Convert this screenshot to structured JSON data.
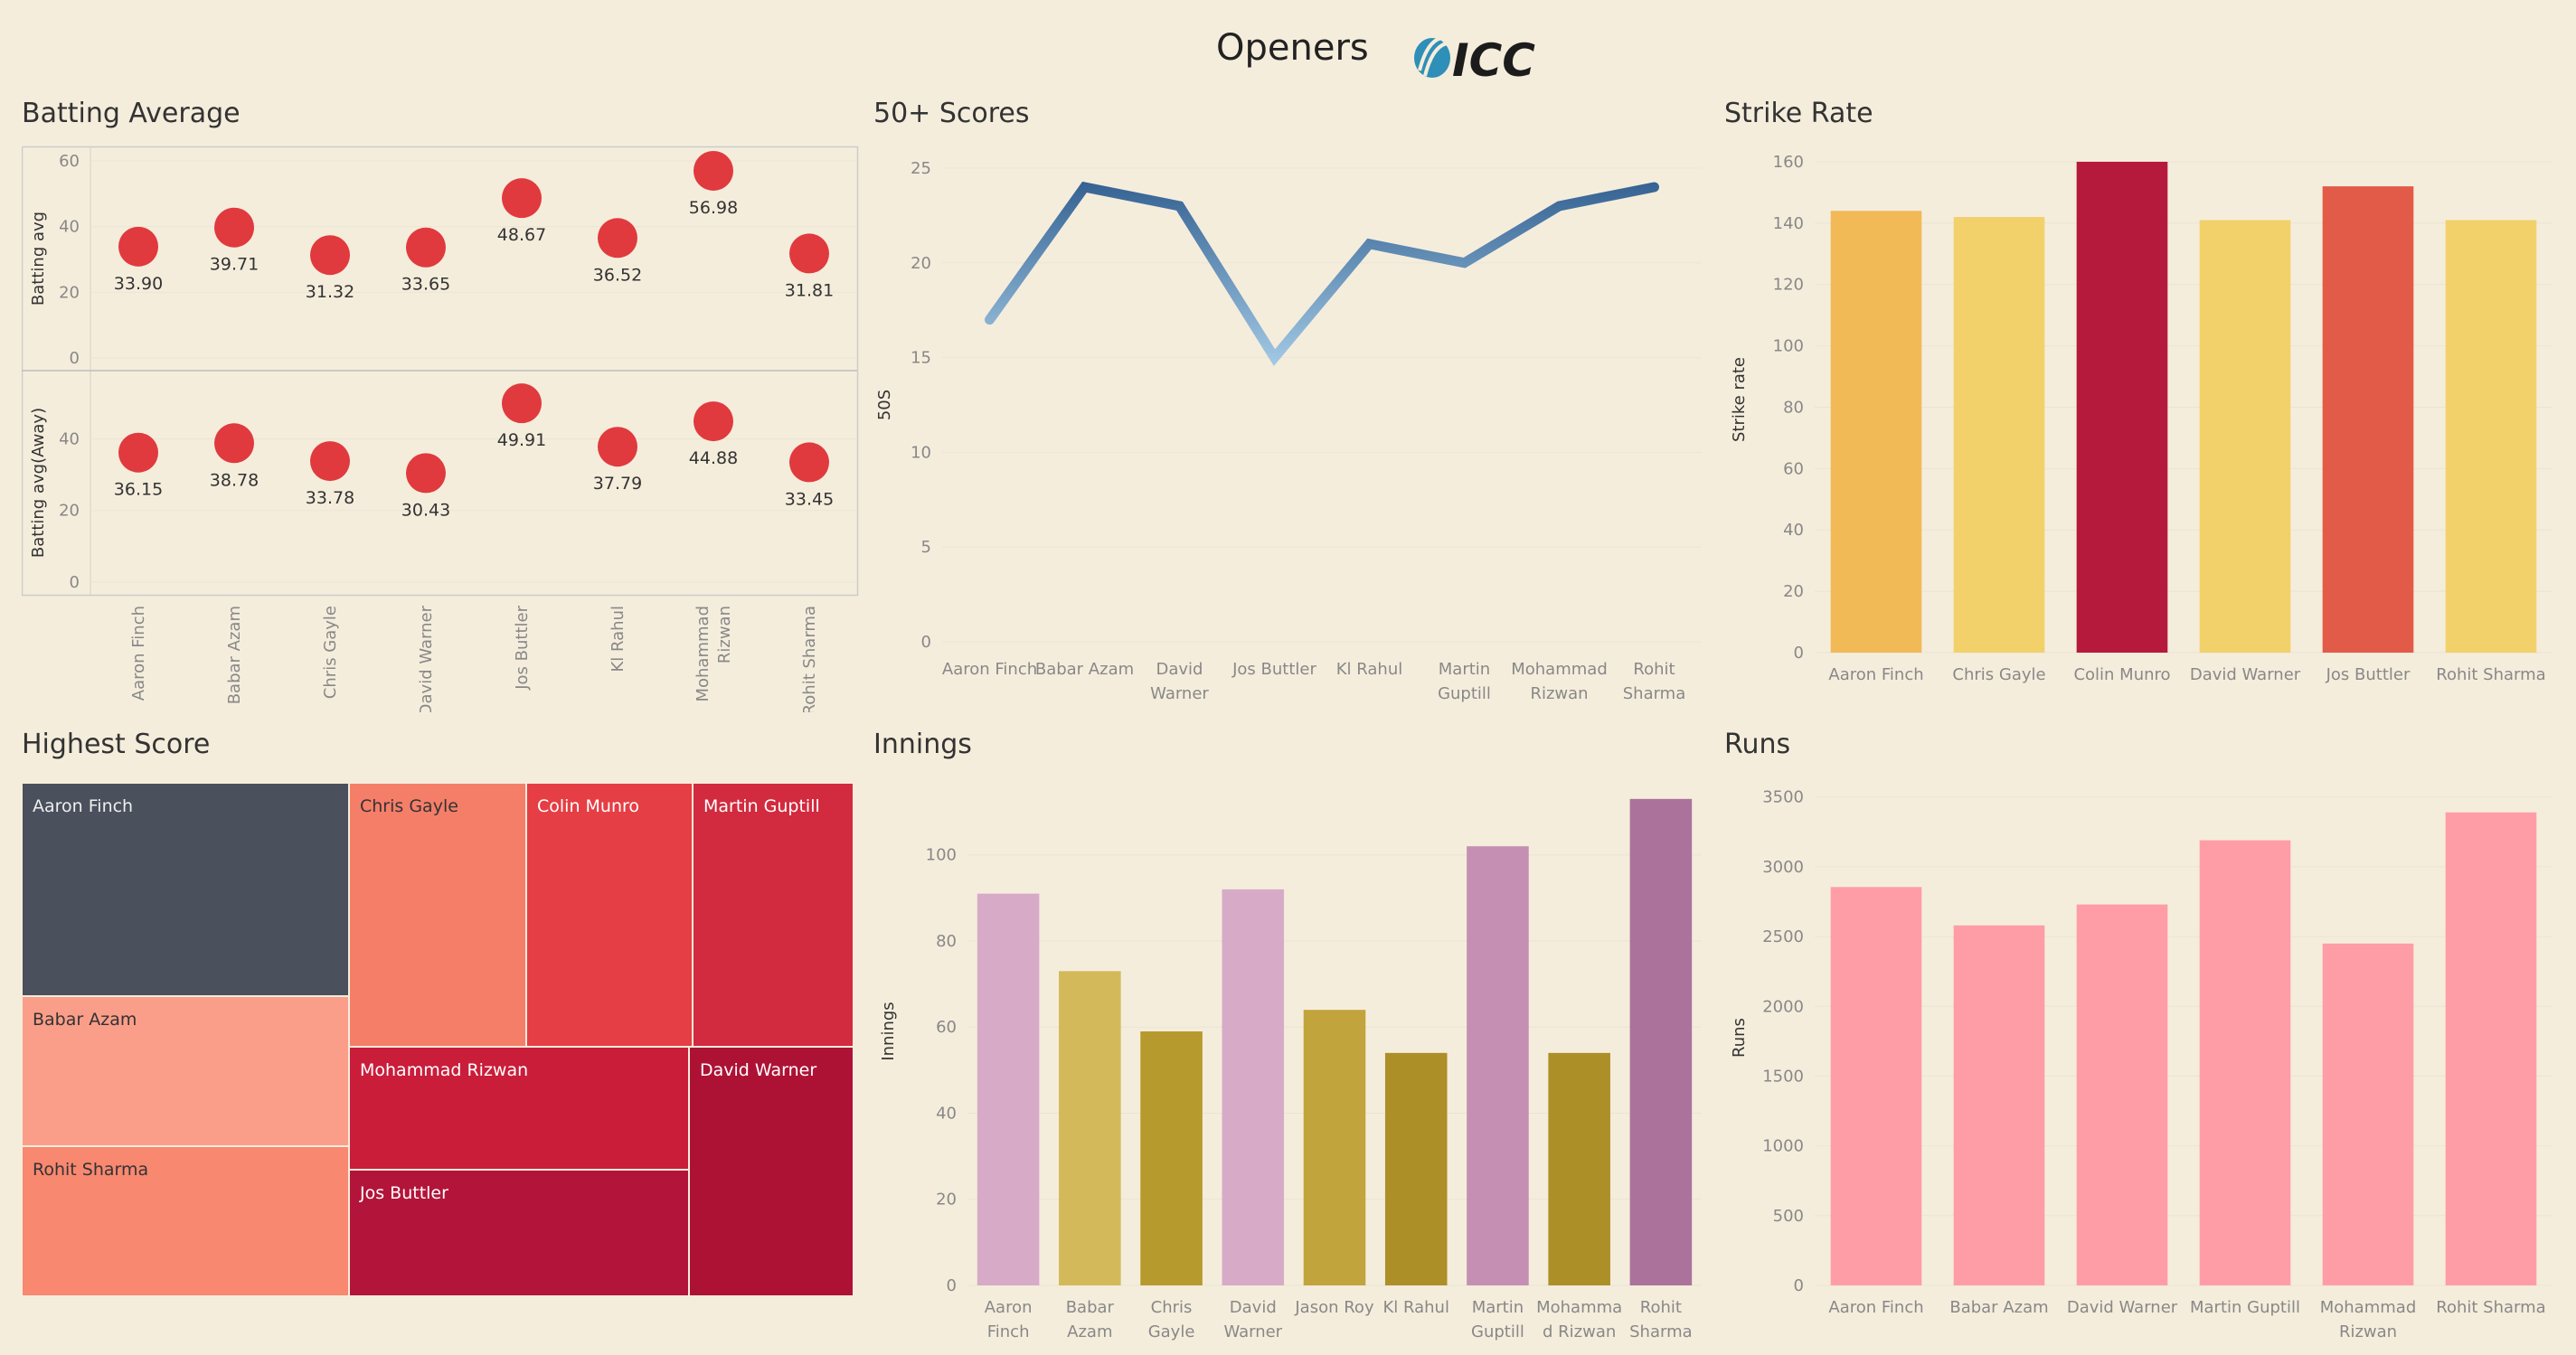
{
  "header": {
    "title": "Openers",
    "logo_text": "ICC",
    "logo_icon": "icc-logo-icon"
  },
  "colors": {
    "background": "#f5eddc",
    "dot": "#e03a3e"
  },
  "chart_data": [
    {
      "id": "batting_average",
      "type": "scatter",
      "title": "Batting Average",
      "categories": [
        "Aaron Finch",
        "Babar Azam",
        "Chris Gayle",
        "David Warner",
        "Jos Buttler",
        "Kl Rahul",
        "Mohammad Rizwan",
        "Rohit Sharma"
      ],
      "series": [
        {
          "name": "Batting avg",
          "values": [
            33.9,
            39.71,
            31.32,
            33.65,
            48.67,
            36.52,
            56.98,
            31.81
          ],
          "labels": [
            "33.90",
            "39.71",
            "31.32",
            "33.65",
            "48.67",
            "36.52",
            "56.98",
            "31.81"
          ],
          "ylim": [
            0,
            60
          ],
          "ticks": [
            0,
            20,
            40,
            60
          ]
        },
        {
          "name": "Batting avg(Away)",
          "values": [
            36.15,
            38.78,
            33.78,
            30.43,
            49.91,
            37.79,
            44.88,
            33.45
          ],
          "labels": [
            "36.15",
            "38.78",
            "33.78",
            "30.43",
            "49.91",
            "37.79",
            "44.88",
            "33.45"
          ],
          "ylim": [
            0,
            55
          ],
          "ticks": [
            0,
            20,
            40
          ]
        }
      ]
    },
    {
      "id": "fifty_plus",
      "type": "line",
      "title": "50+ Scores",
      "ylabel": "50S",
      "categories": [
        "Aaron Finch",
        "Babar Azam",
        "David Warner",
        "Jos Buttler",
        "Kl Rahul",
        "Martin Guptill",
        "Mohammad Rizwan",
        "Rohit Sharma"
      ],
      "values": [
        17,
        24,
        23,
        15,
        21,
        20,
        23,
        24
      ],
      "ylim": [
        0,
        25
      ],
      "ticks": [
        0,
        5,
        10,
        15,
        20,
        25
      ],
      "colors": {
        "high": "#2c5a8c",
        "low": "#a9d0ea"
      }
    },
    {
      "id": "strike_rate",
      "type": "bar",
      "title": "Strike Rate",
      "ylabel": "Strike rate",
      "categories": [
        "Aaron Finch",
        "Chris Gayle",
        "Colin Munro",
        "David Warner",
        "Jos Buttler",
        "Rohit Sharma"
      ],
      "values": [
        144,
        142,
        160,
        141,
        152,
        141
      ],
      "ylim": [
        0,
        165
      ],
      "ticks": [
        0,
        20,
        40,
        60,
        80,
        100,
        120,
        140,
        160
      ],
      "colors": [
        "#f2b957",
        "#f2d16b",
        "#b5193c",
        "#f2d16b",
        "#e25b48",
        "#f2d16b"
      ]
    },
    {
      "id": "highest_score",
      "type": "treemap",
      "title": "Highest Score",
      "items": [
        {
          "name": "Aaron Finch",
          "color": "#4a505c",
          "text": "#eeeeee"
        },
        {
          "name": "Babar Azam",
          "color": "#fa9e89",
          "text": "#333333"
        },
        {
          "name": "Rohit Sharma",
          "color": "#f88870",
          "text": "#333333"
        },
        {
          "name": "Chris Gayle",
          "color": "#f57e69",
          "text": "#333333"
        },
        {
          "name": "Colin Munro",
          "color": "#e53e44",
          "text": "#ffffff"
        },
        {
          "name": "Martin Guptill",
          "color": "#d22a3e",
          "text": "#ffffff"
        },
        {
          "name": "Mohammad Rizwan",
          "color": "#c91d3a",
          "text": "#ffffff"
        },
        {
          "name": "Jos Buttler",
          "color": "#b3143a",
          "text": "#ffffff"
        },
        {
          "name": "David Warner",
          "color": "#ad1235",
          "text": "#ffffff"
        }
      ]
    },
    {
      "id": "innings",
      "type": "bar",
      "title": "Innings",
      "ylabel": "Innings",
      "categories": [
        "Aaron Finch",
        "Babar Azam",
        "Chris Gayle",
        "David Warner",
        "Jason Roy",
        "Kl Rahul",
        "Martin Guptill",
        "Mohammad Rizwan",
        "Rohit Sharma"
      ],
      "tick_labels": [
        [
          "Aaron",
          "Finch"
        ],
        [
          "Babar",
          "Azam"
        ],
        [
          "Chris",
          "Gayle"
        ],
        [
          "David",
          "Warner"
        ],
        [
          "Jason Roy"
        ],
        [
          "Kl Rahul"
        ],
        [
          "Martin",
          "Guptill"
        ],
        [
          "Mohamma",
          "d Rizwan"
        ],
        [
          "Rohit",
          "Sharma"
        ]
      ],
      "values": [
        91,
        73,
        59,
        92,
        64,
        54,
        102,
        54,
        113
      ],
      "ylim": [
        0,
        118
      ],
      "ticks": [
        0,
        20,
        40,
        60,
        80,
        100
      ],
      "colors": [
        "#d7abc8",
        "#d3b95a",
        "#b79a2e",
        "#d7abc8",
        "#c2a43c",
        "#ad8f28",
        "#c58fb4",
        "#ad8f28",
        "#ab739b"
      ]
    },
    {
      "id": "runs",
      "type": "bar",
      "title": "Runs",
      "ylabel": "Runs",
      "categories": [
        "Aaron Finch",
        "Babar Azam",
        "David Warner",
        "Martin Guptill",
        "Mohammad Rizwan",
        "Rohit Sharma"
      ],
      "tick_labels": [
        [
          "Aaron Finch"
        ],
        [
          "Babar Azam"
        ],
        [
          "David Warner"
        ],
        [
          "Martin Guptill"
        ],
        [
          "Mohammad",
          "Rizwan"
        ],
        [
          "Rohit Sharma"
        ]
      ],
      "values": [
        2855,
        2580,
        2730,
        3190,
        2450,
        3390
      ],
      "ylim": [
        0,
        3550
      ],
      "ticks": [
        0,
        500,
        1000,
        1500,
        2000,
        2500,
        3000,
        3500
      ],
      "colors": [
        "#fe9da6",
        "#fe9da6",
        "#fe9da6",
        "#fe9da6",
        "#fe9da6",
        "#fe9da6"
      ]
    }
  ]
}
